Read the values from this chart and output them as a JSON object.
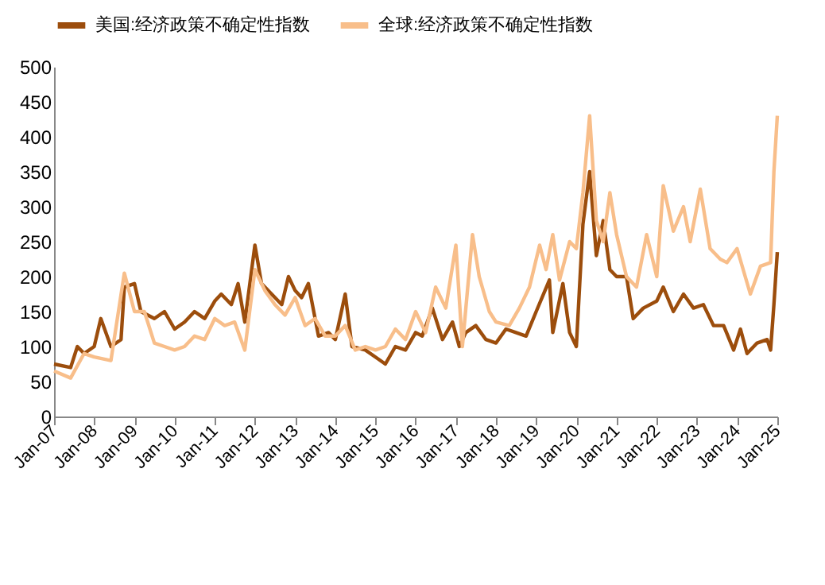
{
  "chart_data": {
    "type": "line",
    "legend": "top",
    "grid": false,
    "marker": "none",
    "line_style": "solid",
    "ylim": [
      0,
      500
    ],
    "yticks": [
      0,
      50,
      100,
      150,
      200,
      250,
      300,
      350,
      400,
      450,
      500
    ],
    "xlim": [
      "2007-01",
      "2025-01"
    ],
    "xticks": [
      {
        "value": "2007-01",
        "label": "Jan-07"
      },
      {
        "value": "2008-01",
        "label": "Jan-08"
      },
      {
        "value": "2009-01",
        "label": "Jan-09"
      },
      {
        "value": "2010-01",
        "label": "Jan-10"
      },
      {
        "value": "2011-01",
        "label": "Jan-11"
      },
      {
        "value": "2012-01",
        "label": "Jan-12"
      },
      {
        "value": "2013-01",
        "label": "Jan-13"
      },
      {
        "value": "2014-01",
        "label": "Jan-14"
      },
      {
        "value": "2015-01",
        "label": "Jan-15"
      },
      {
        "value": "2016-01",
        "label": "Jan-16"
      },
      {
        "value": "2017-01",
        "label": "Jan-17"
      },
      {
        "value": "2018-01",
        "label": "Jan-18"
      },
      {
        "value": "2019-01",
        "label": "Jan-19"
      },
      {
        "value": "2020-01",
        "label": "Jan-20"
      },
      {
        "value": "2021-01",
        "label": "Jan-21"
      },
      {
        "value": "2022-01",
        "label": "Jan-22"
      },
      {
        "value": "2023-01",
        "label": "Jan-23"
      },
      {
        "value": "2024-01",
        "label": "Jan-24"
      },
      {
        "value": "2025-01",
        "label": "Jan-25"
      }
    ],
    "series": [
      {
        "name": "美国:经济政策不确定性指数",
        "color": "#9c4d0c",
        "x": [
          "2007-01",
          "2007-06",
          "2007-08",
          "2007-10",
          "2008-01",
          "2008-03",
          "2008-06",
          "2008-09",
          "2008-10",
          "2009-01",
          "2009-03",
          "2009-07",
          "2009-10",
          "2010-01",
          "2010-04",
          "2010-07",
          "2010-10",
          "2011-01",
          "2011-03",
          "2011-06",
          "2011-08",
          "2011-10",
          "2012-01",
          "2012-03",
          "2012-06",
          "2012-09",
          "2012-11",
          "2013-01",
          "2013-03",
          "2013-05",
          "2013-08",
          "2013-11",
          "2014-01",
          "2014-04",
          "2014-06",
          "2014-10",
          "2015-01",
          "2015-04",
          "2015-07",
          "2015-10",
          "2016-01",
          "2016-03",
          "2016-06",
          "2016-09",
          "2016-12",
          "2017-02",
          "2017-04",
          "2017-07",
          "2017-10",
          "2018-01",
          "2018-04",
          "2018-07",
          "2018-10",
          "2019-01",
          "2019-05",
          "2019-06",
          "2019-09",
          "2019-11",
          "2020-01",
          "2020-03",
          "2020-05",
          "2020-07",
          "2020-09",
          "2020-11",
          "2021-01",
          "2021-04",
          "2021-06",
          "2021-09",
          "2022-01",
          "2022-03",
          "2022-06",
          "2022-09",
          "2022-12",
          "2023-03",
          "2023-06",
          "2023-09",
          "2023-12",
          "2024-02",
          "2024-04",
          "2024-07",
          "2024-10",
          "2024-11",
          "2024-12",
          "2025-01"
        ],
        "values": [
          75,
          70,
          100,
          90,
          100,
          140,
          100,
          110,
          185,
          190,
          150,
          140,
          150,
          125,
          135,
          150,
          140,
          165,
          175,
          160,
          190,
          135,
          245,
          190,
          175,
          160,
          200,
          180,
          170,
          190,
          115,
          120,
          110,
          175,
          100,
          95,
          85,
          75,
          100,
          95,
          120,
          115,
          155,
          110,
          135,
          100,
          120,
          130,
          110,
          105,
          125,
          120,
          115,
          150,
          195,
          120,
          190,
          120,
          100,
          275,
          350,
          230,
          280,
          210,
          200,
          200,
          140,
          155,
          165,
          185,
          150,
          175,
          155,
          160,
          130,
          130,
          95,
          125,
          90,
          105,
          110,
          95,
          160,
          235
        ]
      },
      {
        "name": "全球:经济政策不确定性指数",
        "color": "#f8be8a",
        "x": [
          "2007-01",
          "2007-06",
          "2007-10",
          "2008-01",
          "2008-06",
          "2008-10",
          "2009-01",
          "2009-04",
          "2009-07",
          "2009-10",
          "2010-01",
          "2010-04",
          "2010-07",
          "2010-10",
          "2011-01",
          "2011-04",
          "2011-07",
          "2011-10",
          "2012-01",
          "2012-04",
          "2012-07",
          "2012-10",
          "2013-01",
          "2013-04",
          "2013-07",
          "2013-10",
          "2014-01",
          "2014-04",
          "2014-07",
          "2014-10",
          "2015-01",
          "2015-04",
          "2015-07",
          "2015-10",
          "2016-01",
          "2016-04",
          "2016-07",
          "2016-10",
          "2017-01",
          "2017-03",
          "2017-06",
          "2017-08",
          "2017-11",
          "2018-01",
          "2018-05",
          "2018-08",
          "2018-11",
          "2019-02",
          "2019-04",
          "2019-06",
          "2019-08",
          "2019-11",
          "2020-01",
          "2020-03",
          "2020-05",
          "2020-07",
          "2020-09",
          "2020-11",
          "2021-01",
          "2021-04",
          "2021-07",
          "2021-10",
          "2022-01",
          "2022-03",
          "2022-06",
          "2022-09",
          "2022-11",
          "2023-02",
          "2023-05",
          "2023-08",
          "2023-10",
          "2024-01",
          "2024-05",
          "2024-08",
          "2024-11",
          "2024-12",
          "2025-01"
        ],
        "values": [
          65,
          55,
          90,
          85,
          80,
          205,
          150,
          150,
          105,
          100,
          95,
          100,
          115,
          110,
          140,
          130,
          135,
          95,
          210,
          180,
          160,
          145,
          170,
          130,
          140,
          115,
          115,
          130,
          95,
          100,
          95,
          100,
          125,
          110,
          150,
          120,
          185,
          155,
          245,
          100,
          260,
          200,
          150,
          135,
          130,
          155,
          185,
          245,
          210,
          260,
          195,
          250,
          240,
          320,
          430,
          280,
          250,
          320,
          260,
          200,
          185,
          260,
          200,
          330,
          265,
          300,
          250,
          325,
          240,
          225,
          220,
          240,
          175,
          215,
          220,
          350,
          430
        ]
      }
    ]
  }
}
